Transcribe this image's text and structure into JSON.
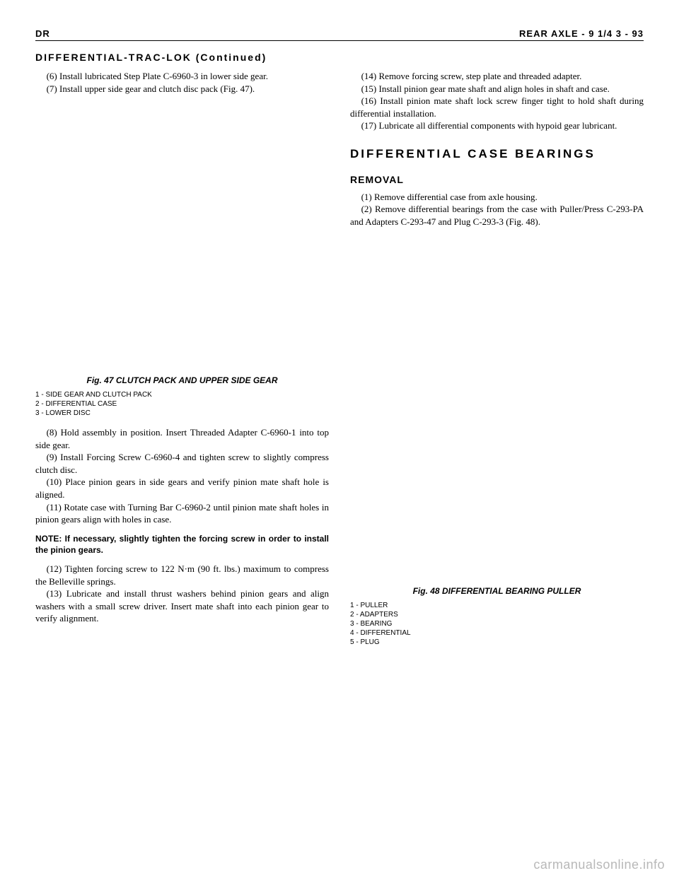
{
  "header": {
    "left": "DR",
    "right": "REAR AXLE - 9 1/4    3 - 93"
  },
  "continued": "DIFFERENTIAL-TRAC-LOK (Continued)",
  "left_col": {
    "p1": "(6) Install lubricated Step Plate C-6960-3 in lower side gear.",
    "p2": "(7) Install upper side gear and clutch disc pack (Fig. 47).",
    "fig47_caption": "Fig. 47 CLUTCH PACK AND UPPER SIDE GEAR",
    "fig47_legend1": "1 - SIDE GEAR AND CLUTCH PACK",
    "fig47_legend2": "2 - DIFFERENTIAL CASE",
    "fig47_legend3": "3 - LOWER DISC",
    "p3": "(8) Hold assembly in position. Insert Threaded Adapter C-6960-1 into top side gear.",
    "p4": "(9) Install Forcing Screw C-6960-4 and tighten screw to slightly compress clutch disc.",
    "p5": "(10) Place pinion gears in side gears and verify pinion mate shaft hole is aligned.",
    "p6": "(11) Rotate case with Turning Bar C-6960-2 until pinion mate shaft holes in pinion gears align with holes in case.",
    "note": "NOTE: If necessary, slightly tighten the forcing screw in order to install the pinion gears.",
    "p7": "(12) Tighten forcing screw to 122 N·m (90 ft. lbs.) maximum to compress the Belleville springs.",
    "p8": "(13) Lubricate and install thrust washers behind pinion gears and align washers with a small screw driver. Insert mate shaft into each pinion gear to verify alignment."
  },
  "right_col": {
    "p1": "(14) Remove forcing screw, step plate and threaded adapter.",
    "p2": "(15) Install pinion gear mate shaft and align holes in shaft and case.",
    "p3": "(16) Install pinion mate shaft lock screw finger tight to hold shaft during differential installation.",
    "p4": "(17) Lubricate all differential components with hypoid gear lubricant.",
    "section_title": "DIFFERENTIAL CASE BEARINGS",
    "sub_title": "REMOVAL",
    "p5": "(1) Remove differential case from axle housing.",
    "p6": "(2) Remove differential bearings from the case with Puller/Press C-293-PA and Adapters C-293-47 and Plug C-293-3 (Fig. 48).",
    "fig48_caption": "Fig. 48 DIFFERENTIAL BEARING PULLER",
    "fig48_legend1": "1 - PULLER",
    "fig48_legend2": "2 - ADAPTERS",
    "fig48_legend3": "3 - BEARING",
    "fig48_legend4": "4 - DIFFERENTIAL",
    "fig48_legend5": "5 - PLUG"
  },
  "watermark": "carmanualsonline.info"
}
